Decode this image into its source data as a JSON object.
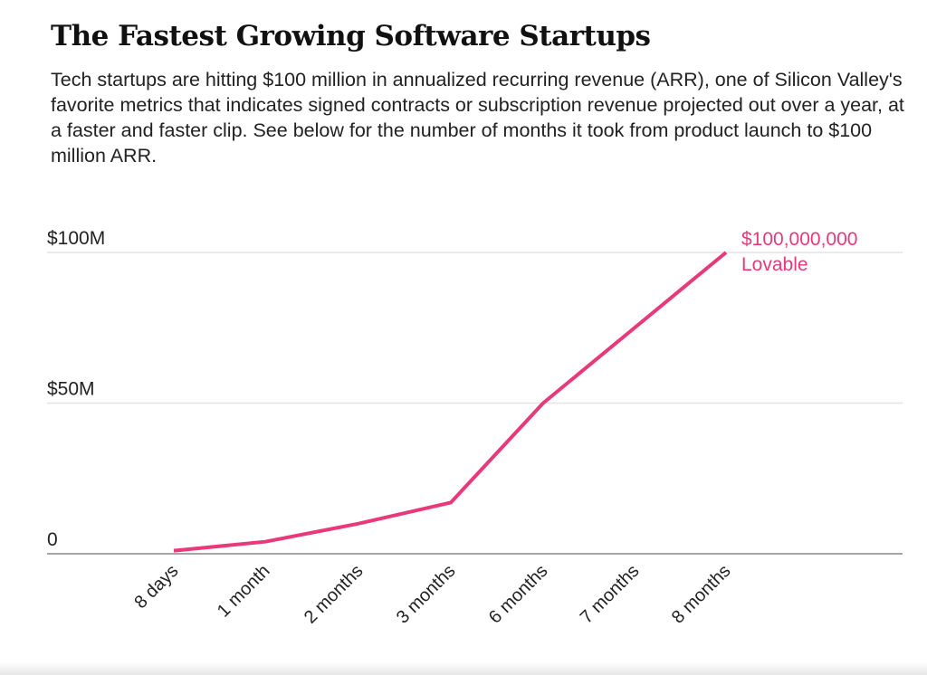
{
  "chart_data": {
    "type": "line",
    "title": "The Fastest Growing Software Startups",
    "subtitle": "Tech startups are hitting $100 million in annualized recurring revenue (ARR), one of Silicon Valley's favorite metrics that indicates signed contracts or subscription revenue projected out over a year, at a faster and faster clip. See below for the number of months it took from product launch to $100 million ARR.",
    "categories": [
      "8 days",
      "1 month",
      "2 months",
      "3 months",
      "6 months",
      "7 months",
      "8 months"
    ],
    "values": [
      1000000,
      4000000,
      10000000,
      17000000,
      50000000,
      75000000,
      100000000
    ],
    "ylim": [
      0,
      100000000
    ],
    "yticks": [
      0,
      50000000,
      100000000
    ],
    "ytick_labels": [
      "0",
      "$50M",
      "$100M"
    ],
    "annotation": {
      "value": "$100,000,000",
      "label": "Lovable"
    },
    "grid": true,
    "colors": {
      "line": "#e8397a",
      "grid": "#e4e4e4",
      "axis": "#888888",
      "text": "#222222"
    }
  }
}
